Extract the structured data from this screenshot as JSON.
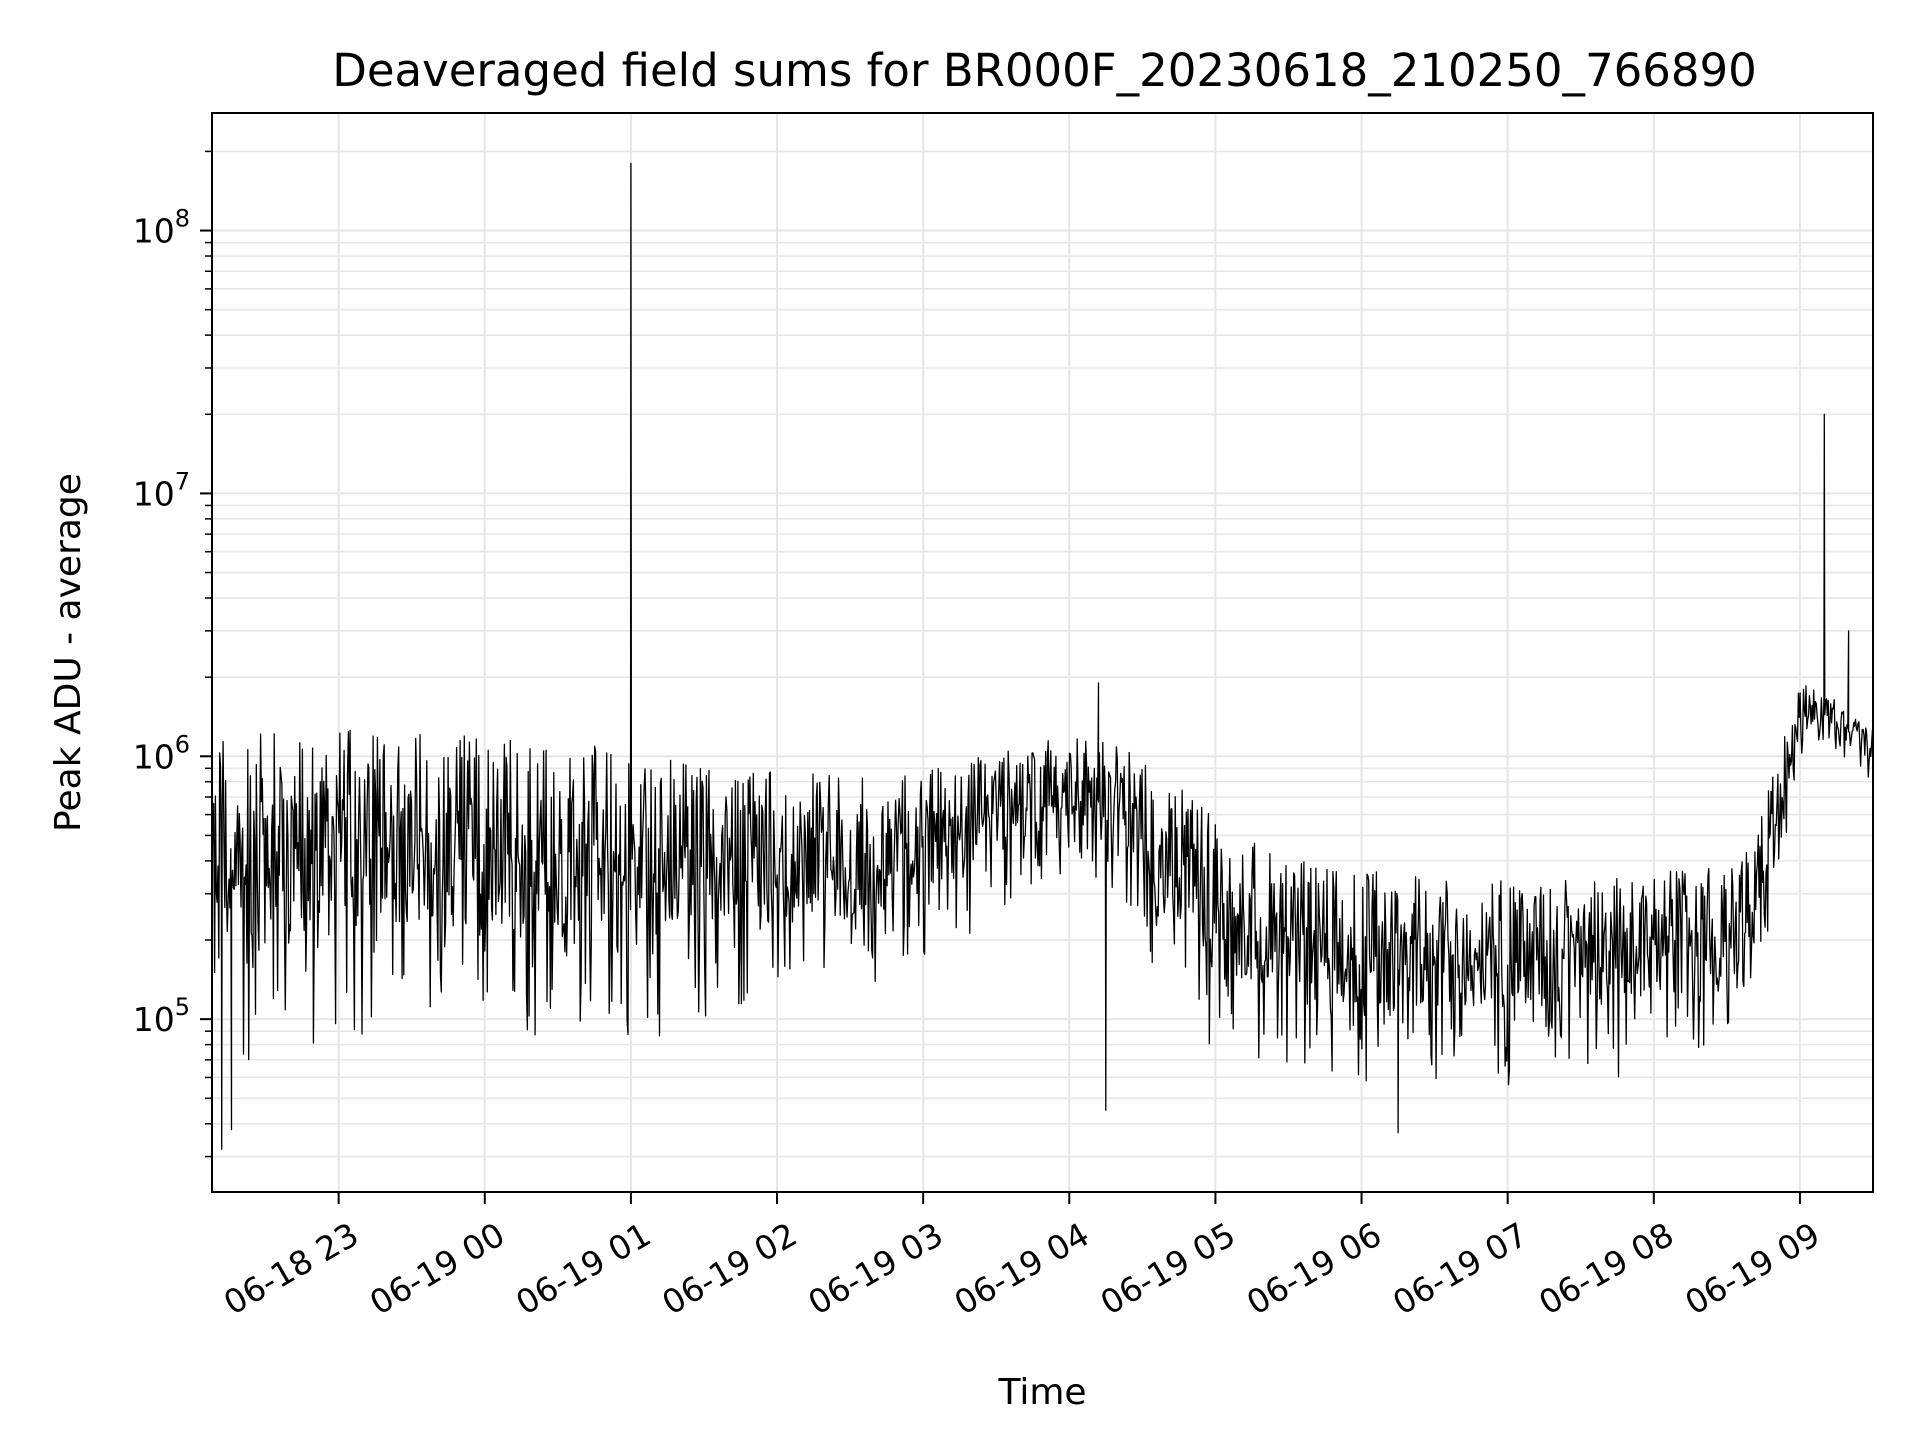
{
  "chart_data": {
    "type": "line",
    "title": "Deaveraged field sums for BR000F_20230618_210250_766890",
    "xlabel": "Time",
    "ylabel": "Peak ADU - average",
    "yscale": "log",
    "ylim": [
      22000,
      280000000
    ],
    "xlim": [
      "2023-06-18 22:08",
      "2023-06-19 09:30"
    ],
    "grid": true,
    "x_ticks": [
      {
        "value": "2023-06-18 23:00",
        "label": "06-18 23"
      },
      {
        "value": "2023-06-19 00:00",
        "label": "06-19 00"
      },
      {
        "value": "2023-06-19 01:00",
        "label": "06-19 01"
      },
      {
        "value": "2023-06-19 02:00",
        "label": "06-19 02"
      },
      {
        "value": "2023-06-19 03:00",
        "label": "06-19 03"
      },
      {
        "value": "2023-06-19 04:00",
        "label": "06-19 04"
      },
      {
        "value": "2023-06-19 05:00",
        "label": "06-19 05"
      },
      {
        "value": "2023-06-19 06:00",
        "label": "06-19 06"
      },
      {
        "value": "2023-06-19 07:00",
        "label": "06-19 07"
      },
      {
        "value": "2023-06-19 08:00",
        "label": "06-19 08"
      },
      {
        "value": "2023-06-19 09:00",
        "label": "06-19 09"
      }
    ],
    "y_ticks": [
      {
        "value": 100000,
        "base": "10",
        "exp": "5"
      },
      {
        "value": 1000000,
        "base": "10",
        "exp": "6"
      },
      {
        "value": 10000000,
        "base": "10",
        "exp": "7"
      },
      {
        "value": 100000000,
        "base": "10",
        "exp": "8"
      }
    ],
    "series": [
      {
        "color": "#000000",
        "x": [
          "2023-06-18 22:08",
          "2023-06-18 22:20",
          "2023-06-18 22:40",
          "2023-06-18 23:00",
          "2023-06-18 23:20",
          "2023-06-18 23:40",
          "2023-06-19 00:00",
          "2023-06-19 00:20",
          "2023-06-19 00:40",
          "2023-06-19 01:00",
          "2023-06-19 01:20",
          "2023-06-19 01:40",
          "2023-06-19 02:00",
          "2023-06-19 02:20",
          "2023-06-19 02:40",
          "2023-06-19 03:00",
          "2023-06-19 03:20",
          "2023-06-19 03:40",
          "2023-06-19 04:00",
          "2023-06-19 04:20",
          "2023-06-19 04:40",
          "2023-06-19 05:00",
          "2023-06-19 05:20",
          "2023-06-19 05:40",
          "2023-06-19 06:00",
          "2023-06-19 06:20",
          "2023-06-19 06:40",
          "2023-06-19 07:00",
          "2023-06-19 07:20",
          "2023-06-19 07:40",
          "2023-06-19 08:00",
          "2023-06-19 08:20",
          "2023-06-19 08:40",
          "2023-06-19 08:50",
          "2023-06-19 09:00",
          "2023-06-19 09:10",
          "2023-06-19 09:20",
          "2023-06-19 09:30"
        ],
        "upper": [
          1400000,
          1300000,
          1300000,
          1300000,
          1300000,
          1250000,
          1200000,
          1150000,
          1100000,
          1100000,
          1000000,
          950000,
          900000,
          850000,
          850000,
          900000,
          1000000,
          1100000,
          1200000,
          1100000,
          900000,
          600000,
          450000,
          400000,
          380000,
          370000,
          360000,
          360000,
          360000,
          360000,
          360000,
          380000,
          450000,
          1000000,
          1900000,
          1800000,
          1500000,
          1300000
        ],
        "lower": [
          60000,
          60000,
          60000,
          70000,
          70000,
          70000,
          70000,
          70000,
          75000,
          80000,
          85000,
          90000,
          95000,
          100000,
          110000,
          150000,
          200000,
          280000,
          350000,
          250000,
          120000,
          70000,
          60000,
          55000,
          50000,
          50000,
          50000,
          55000,
          55000,
          58000,
          60000,
          62000,
          65000,
          300000,
          900000,
          1100000,
          900000,
          800000
        ],
        "spikes": [
          {
            "x": "2023-06-18 22:12",
            "y": 32000
          },
          {
            "x": "2023-06-18 22:16",
            "y": 38000
          },
          {
            "x": "2023-06-19 01:00",
            "y": 180000000
          },
          {
            "x": "2023-06-19 04:15",
            "y": 45000
          },
          {
            "x": "2023-06-19 06:15",
            "y": 37000
          },
          {
            "x": "2023-06-19 09:10",
            "y": 20000000
          },
          {
            "x": "2023-06-19 09:20",
            "y": 3000000
          },
          {
            "x": "2023-06-19 04:12",
            "y": 1900000
          }
        ]
      }
    ]
  }
}
